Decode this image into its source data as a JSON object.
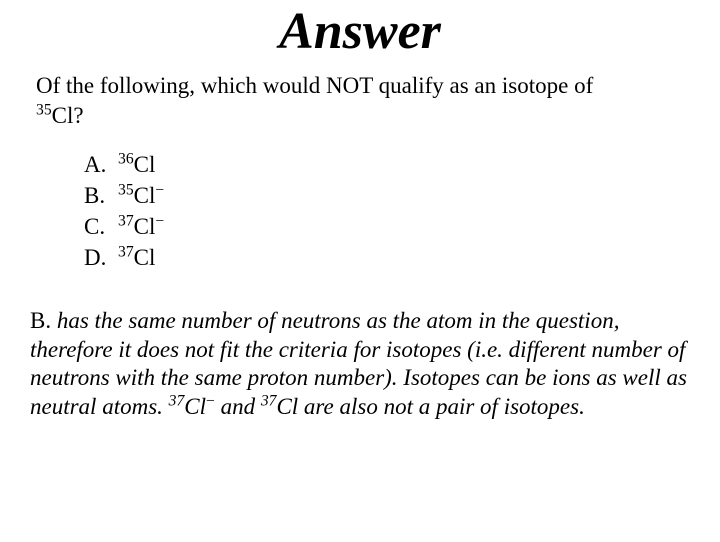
{
  "title": "Answer",
  "question": {
    "line1": "Of the following, which would NOT qualify as an isotope of",
    "q_sup": "35",
    "q_el": "Cl?"
  },
  "options": [
    {
      "letter": "A.",
      "sup": "36",
      "el": "Cl",
      "charge": ""
    },
    {
      "letter": "B.",
      "sup": "35",
      "el": "Cl",
      "charge": "−"
    },
    {
      "letter": "C.",
      "sup": "37",
      "el": "Cl",
      "charge": "−"
    },
    {
      "letter": "D.",
      "sup": "37",
      "el": "Cl",
      "charge": ""
    }
  ],
  "explanation": {
    "lead": "B.",
    "part1": " has the same number of neutrons as the atom in the question, therefore it does not fit the criteria for isotopes (i.e. different number of neutrons with the same proton number). Isotopes can be ions as well as neutral atoms. ",
    "iso1_sup": "37",
    "iso1": "Cl",
    "iso1_ch": "−",
    "mid": " and ",
    "iso2_sup": "37",
    "iso2": "Cl",
    "part2": " are also not a pair of isotopes."
  },
  "style": {
    "background": "#ffffff",
    "text_color": "#000000",
    "title_fontsize": 52,
    "body_fontsize": 23,
    "font_family": "Times New Roman"
  }
}
